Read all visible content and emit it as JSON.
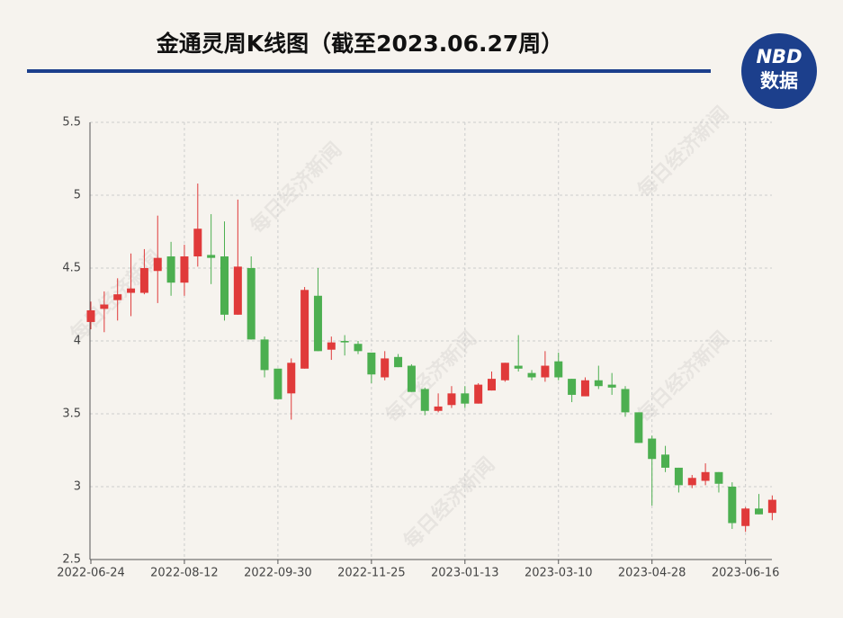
{
  "header": {
    "title": "金通灵周K线图（截至2023.06.27周）",
    "logo_top": "NBD",
    "logo_bottom": "数据"
  },
  "watermark": "每日经济新闻",
  "chart_data": {
    "type": "candlestick",
    "categories": [
      "2022-06-24",
      null,
      null,
      null,
      null,
      null,
      null,
      "2022-08-12",
      null,
      null,
      null,
      null,
      null,
      null,
      "2022-09-30",
      null,
      null,
      null,
      null,
      null,
      null,
      "2022-11-25",
      null,
      null,
      null,
      null,
      null,
      null,
      "2023-01-13",
      null,
      null,
      null,
      null,
      null,
      null,
      "2023-03-10",
      null,
      null,
      null,
      null,
      null,
      null,
      "2023-04-28",
      null,
      null,
      null,
      null,
      null,
      null,
      "2023-06-16",
      null,
      null
    ],
    "open": [
      4.13,
      4.22,
      4.28,
      4.33,
      4.33,
      4.48,
      4.58,
      4.4,
      4.58,
      4.59,
      4.58,
      4.18,
      4.5,
      4.01,
      3.81,
      3.64,
      3.81,
      4.31,
      3.94,
      4.0,
      3.98,
      3.92,
      3.75,
      3.89,
      3.83,
      3.67,
      3.52,
      3.56,
      3.64,
      3.57,
      3.66,
      3.73,
      3.83,
      3.78,
      3.75,
      3.86,
      3.74,
      3.62,
      3.73,
      3.7,
      3.67,
      3.51,
      3.33,
      3.22,
      3.13,
      3.01,
      3.04,
      3.1,
      3.0,
      2.73,
      2.85,
      2.82
    ],
    "high": [
      4.27,
      4.34,
      4.43,
      4.6,
      4.63,
      4.86,
      4.68,
      4.66,
      5.08,
      4.87,
      4.82,
      4.97,
      4.58,
      4.03,
      3.81,
      3.88,
      4.37,
      4.5,
      4.03,
      4.04,
      4.0,
      3.92,
      3.93,
      3.91,
      3.84,
      3.68,
      3.64,
      3.69,
      3.69,
      3.71,
      3.79,
      3.85,
      4.04,
      3.8,
      3.93,
      3.92,
      3.74,
      3.75,
      3.83,
      3.78,
      3.69,
      3.51,
      3.35,
      3.28,
      3.13,
      3.08,
      3.16,
      3.1,
      3.03,
      2.86,
      2.95,
      2.94
    ],
    "low": [
      4.08,
      4.06,
      4.14,
      4.17,
      4.32,
      4.26,
      4.31,
      4.31,
      4.51,
      4.39,
      4.14,
      4.18,
      4.01,
      3.75,
      3.6,
      3.46,
      3.81,
      3.93,
      3.87,
      3.9,
      3.91,
      3.71,
      3.73,
      3.82,
      3.65,
      3.49,
      3.51,
      3.54,
      3.54,
      3.57,
      3.66,
      3.72,
      3.79,
      3.73,
      3.72,
      3.73,
      3.58,
      3.62,
      3.67,
      3.63,
      3.48,
      3.3,
      2.87,
      3.1,
      2.96,
      2.99,
      3.01,
      2.96,
      2.71,
      2.69,
      2.81,
      2.77
    ],
    "close": [
      4.21,
      4.25,
      4.32,
      4.36,
      4.5,
      4.57,
      4.4,
      4.58,
      4.77,
      4.57,
      4.18,
      4.51,
      4.01,
      3.8,
      3.6,
      3.85,
      4.35,
      3.93,
      3.99,
      3.99,
      3.93,
      3.77,
      3.88,
      3.82,
      3.65,
      3.52,
      3.55,
      3.64,
      3.57,
      3.7,
      3.74,
      3.85,
      3.81,
      3.75,
      3.83,
      3.75,
      3.63,
      3.73,
      3.69,
      3.68,
      3.51,
      3.3,
      3.19,
      3.13,
      3.01,
      3.06,
      3.1,
      3.02,
      2.75,
      2.85,
      2.81,
      2.91
    ],
    "up_color": "#e03a3a",
    "down_color": "#4caf50",
    "ylim": [
      2.5,
      5.5
    ],
    "yticks": [
      2.5,
      3,
      3.5,
      4,
      4.5,
      5,
      5.5
    ],
    "grid": true
  }
}
